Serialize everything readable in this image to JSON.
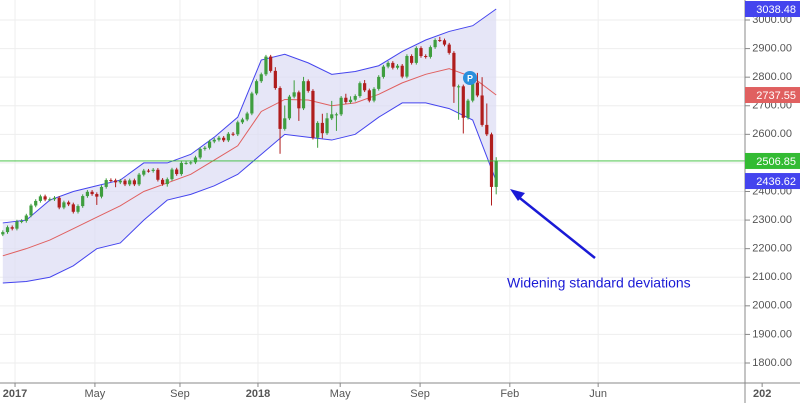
{
  "chart_data": {
    "type": "candlestick",
    "annotation": "Widening standard deviations",
    "marker_label": "P",
    "colors": {
      "up": "#3f9e3f",
      "down": "#b01d1d",
      "band_line": "#4444ee",
      "band_fill": "#dcdcf4",
      "middle": "#e06060",
      "last": "#33bb33",
      "annotation": "#1a1ad6"
    },
    "grid": true,
    "xlim": [
      -0.6,
      165.4
    ],
    "xticks": [
      {
        "value": 2.6,
        "label": "2017"
      },
      {
        "value": 19.6,
        "label": "May"
      },
      {
        "value": 37.7,
        "label": "Sep"
      },
      {
        "value": 54.3,
        "label": "2018"
      },
      {
        "value": 71.8,
        "label": "May"
      },
      {
        "value": 88.8,
        "label": "Sep"
      },
      {
        "value": 107.9,
        "label": "Feb"
      },
      {
        "value": 126.7,
        "label": "Jun"
      },
      {
        "value": 161.6,
        "label": "202"
      }
    ],
    "ylim": [
      1730,
      3070
    ],
    "yticks": [
      {
        "value": 1800,
        "label": "1800.00"
      },
      {
        "value": 1900,
        "label": "1900.00"
      },
      {
        "value": 2000,
        "label": "2000.00"
      },
      {
        "value": 2100,
        "label": "2100.00"
      },
      {
        "value": 2200,
        "label": "2200.00"
      },
      {
        "value": 2300,
        "label": "2300.00"
      },
      {
        "value": 2400,
        "label": "2400.00"
      },
      {
        "value": 2500,
        "label": "2500.00"
      },
      {
        "value": 2600,
        "label": "2600.00"
      },
      {
        "value": 2700,
        "label": "2700.00"
      },
      {
        "value": 2800,
        "label": "2800.00"
      },
      {
        "value": 2900,
        "label": "2900.00"
      },
      {
        "value": 3000,
        "label": "3000.00"
      }
    ],
    "x": [
      0,
      1,
      2,
      3,
      4,
      5,
      6,
      7,
      8,
      9,
      10,
      11,
      12,
      13,
      14,
      15,
      16,
      17,
      18,
      19,
      20,
      21,
      22,
      23,
      24,
      25,
      26,
      27,
      28,
      29,
      30,
      31,
      32,
      33,
      34,
      35,
      36,
      37,
      38,
      39,
      40,
      41,
      42,
      43,
      44,
      45,
      46,
      47,
      48,
      49,
      50,
      51,
      52,
      53,
      54,
      55,
      56,
      57,
      58,
      59,
      60,
      61,
      62,
      63,
      64,
      65,
      66,
      67,
      68,
      69,
      70,
      71,
      72,
      73,
      74,
      75,
      76,
      77,
      78,
      79,
      80,
      81,
      82,
      83,
      84,
      85,
      86,
      87,
      88,
      89,
      90,
      91,
      92,
      93,
      94,
      95,
      96,
      97,
      98,
      99,
      100,
      101,
      102,
      103,
      104,
      105
    ],
    "open": [
      2250,
      2258,
      2275,
      2270,
      2295,
      2297,
      2316,
      2351,
      2367,
      2383,
      2372,
      2373,
      2378,
      2344,
      2362,
      2355,
      2329,
      2349,
      2384,
      2399,
      2391,
      2382,
      2416,
      2440,
      2439,
      2432,
      2438,
      2425,
      2439,
      2425,
      2459,
      2473,
      2472,
      2476,
      2441,
      2426,
      2443,
      2477,
      2461,
      2500,
      2500,
      2502,
      2519,
      2549,
      2553,
      2575,
      2581,
      2588,
      2579,
      2602,
      2600,
      2642,
      2652,
      2673,
      2743,
      2786,
      2810,
      2872,
      2822,
      2762,
      2619,
      2656,
      2732,
      2747,
      2691,
      2786,
      2752,
      2588,
      2640,
      2604,
      2656,
      2670,
      2670,
      2728,
      2713,
      2721,
      2734,
      2779,
      2754,
      2718,
      2759,
      2801,
      2837,
      2850,
      2833,
      2840,
      2802,
      2874,
      2850,
      2902,
      2874,
      2871,
      2905,
      2930,
      2929,
      2914,
      2885,
      2767,
      2768,
      2658,
      2718,
      2781,
      2736,
      2633,
      2600,
      2416
    ],
    "high": [
      2264,
      2281,
      2281,
      2301,
      2303,
      2322,
      2357,
      2373,
      2389,
      2389,
      2379,
      2384,
      2384,
      2368,
      2368,
      2361,
      2355,
      2390,
      2405,
      2405,
      2397,
      2422,
      2446,
      2446,
      2445,
      2444,
      2444,
      2445,
      2445,
      2465,
      2479,
      2479,
      2482,
      2482,
      2447,
      2449,
      2483,
      2483,
      2506,
      2506,
      2508,
      2525,
      2555,
      2559,
      2581,
      2587,
      2594,
      2594,
      2608,
      2608,
      2648,
      2658,
      2679,
      2749,
      2792,
      2816,
      2878,
      2878,
      2835,
      2768,
      2701,
      2738,
      2789,
      2753,
      2801,
      2792,
      2758,
      2646,
      2672,
      2675,
      2717,
      2676,
      2734,
      2742,
      2733,
      2740,
      2785,
      2790,
      2760,
      2765,
      2807,
      2843,
      2856,
      2856,
      2846,
      2846,
      2880,
      2880,
      2908,
      2908,
      2880,
      2911,
      2936,
      2941,
      2935,
      2920,
      2891,
      2774,
      2774,
      2724,
      2787,
      2815,
      2800,
      2708,
      2606,
      2520
    ],
    "low": [
      2244,
      2252,
      2264,
      2264,
      2289,
      2291,
      2310,
      2345,
      2361,
      2366,
      2366,
      2367,
      2338,
      2338,
      2349,
      2323,
      2323,
      2343,
      2378,
      2385,
      2353,
      2376,
      2410,
      2433,
      2415,
      2426,
      2419,
      2419,
      2419,
      2419,
      2453,
      2466,
      2466,
      2435,
      2420,
      2417,
      2437,
      2455,
      2455,
      2494,
      2494,
      2496,
      2513,
      2543,
      2547,
      2569,
      2575,
      2573,
      2573,
      2594,
      2594,
      2636,
      2646,
      2667,
      2737,
      2780,
      2804,
      2816,
      2756,
      2532,
      2613,
      2650,
      2726,
      2647,
      2685,
      2746,
      2582,
      2553,
      2586,
      2598,
      2650,
      2612,
      2664,
      2707,
      2707,
      2715,
      2728,
      2748,
      2712,
      2712,
      2753,
      2795,
      2831,
      2827,
      2827,
      2796,
      2796,
      2844,
      2844,
      2868,
      2865,
      2865,
      2899,
      2923,
      2908,
      2879,
      2710,
      2651,
      2603,
      2652,
      2712,
      2730,
      2627,
      2594,
      2351,
      2390
    ],
    "close": [
      2258,
      2275,
      2270,
      2295,
      2297,
      2316,
      2351,
      2367,
      2383,
      2372,
      2373,
      2378,
      2344,
      2362,
      2355,
      2329,
      2349,
      2384,
      2399,
      2391,
      2382,
      2416,
      2440,
      2439,
      2432,
      2438,
      2425,
      2439,
      2425,
      2459,
      2473,
      2472,
      2476,
      2441,
      2426,
      2443,
      2477,
      2461,
      2500,
      2500,
      2502,
      2519,
      2549,
      2553,
      2575,
      2581,
      2588,
      2579,
      2602,
      2600,
      2642,
      2652,
      2673,
      2743,
      2786,
      2810,
      2872,
      2822,
      2762,
      2619,
      2656,
      2732,
      2747,
      2691,
      2786,
      2752,
      2588,
      2640,
      2604,
      2656,
      2670,
      2670,
      2728,
      2713,
      2721,
      2734,
      2779,
      2754,
      2718,
      2759,
      2801,
      2837,
      2850,
      2833,
      2840,
      2802,
      2874,
      2850,
      2902,
      2874,
      2871,
      2905,
      2930,
      2929,
      2914,
      2885,
      2767,
      2768,
      2658,
      2718,
      2781,
      2736,
      2633,
      2600,
      2416,
      2506.85
    ],
    "bands": {
      "x": [
        0,
        5,
        10,
        15,
        20,
        25,
        30,
        35,
        40,
        45,
        50,
        55,
        60,
        65,
        70,
        75,
        80,
        85,
        90,
        95,
        100,
        105
      ],
      "upper": [
        2290,
        2300,
        2370,
        2400,
        2420,
        2440,
        2500,
        2500,
        2530,
        2590,
        2660,
        2860,
        2880,
        2850,
        2810,
        2820,
        2840,
        2890,
        2930,
        2960,
        2980,
        3038.48
      ],
      "middle": [
        2175,
        2200,
        2230,
        2270,
        2310,
        2350,
        2400,
        2430,
        2460,
        2510,
        2560,
        2680,
        2722,
        2720,
        2700,
        2710,
        2740,
        2780,
        2810,
        2830,
        2800,
        2737.55
      ],
      "lower": [
        2080,
        2085,
        2100,
        2140,
        2200,
        2220,
        2300,
        2370,
        2390,
        2420,
        2460,
        2530,
        2600,
        2590,
        2580,
        2600,
        2660,
        2710,
        2710,
        2690,
        2650,
        2436.62
      ]
    }
  }
}
